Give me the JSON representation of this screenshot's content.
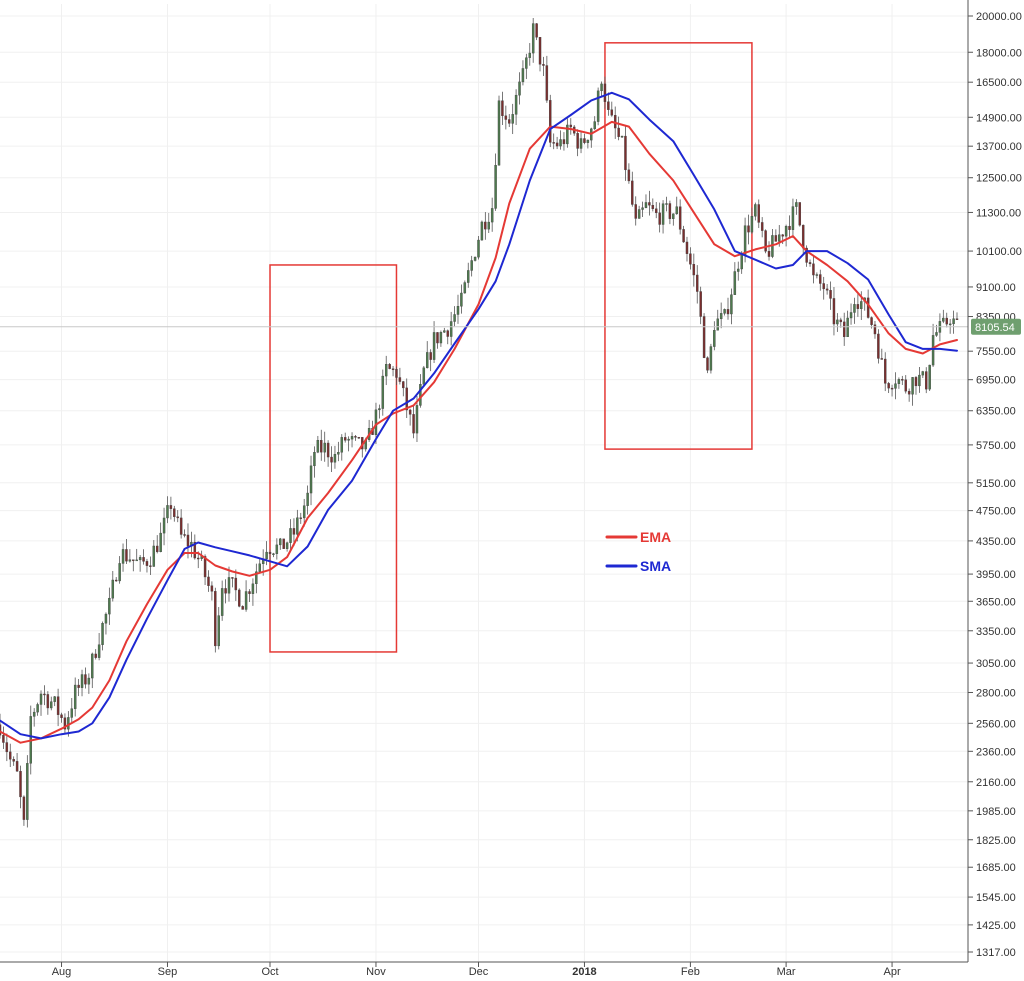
{
  "chart_data": {
    "type": "line",
    "title": "",
    "xlabel": "",
    "ylabel": "",
    "y_scale": "log",
    "ylim": [
      1317,
      20000
    ],
    "x_range": [
      "2017-07-14",
      "2018-04-20"
    ],
    "grid": true,
    "legend_placement": "center-right",
    "y_ticks": [
      20000,
      18000,
      16500,
      14900,
      13700,
      12500,
      11300,
      10100,
      9100,
      8350,
      7550,
      6950,
      6350,
      5750,
      5150,
      4750,
      4350,
      3950,
      3650,
      3350,
      3050,
      2800,
      2560,
      2360,
      2160,
      1985,
      1825,
      1685,
      1545,
      1425,
      1317
    ],
    "y_tick_labels": [
      "20000.00",
      "18000.00",
      "16500.00",
      "14900.00",
      "13700.00",
      "12500.00",
      "11300.00",
      "10100.00",
      "9100.00",
      "8350.00",
      "7550.00",
      "6950.00",
      "6350.00",
      "5750.00",
      "5150.00",
      "4750.00",
      "4350.00",
      "3950.00",
      "3650.00",
      "3350.00",
      "3050.00",
      "2800.00",
      "2560.00",
      "2360.00",
      "2160.00",
      "1985.00",
      "1825.00",
      "1685.00",
      "1545.00",
      "1425.00",
      "1317.00"
    ],
    "x_ticks": [
      {
        "date": "2017-08-01",
        "label": "Aug"
      },
      {
        "date": "2017-09-01",
        "label": "Sep"
      },
      {
        "date": "2017-10-01",
        "label": "Oct"
      },
      {
        "date": "2017-11-01",
        "label": "Nov"
      },
      {
        "date": "2017-12-01",
        "label": "Dec"
      },
      {
        "date": "2018-01-01",
        "label": "2018"
      },
      {
        "date": "2018-02-01",
        "label": "Feb"
      },
      {
        "date": "2018-03-01",
        "label": "Mar"
      },
      {
        "date": "2018-04-01",
        "label": "Apr"
      }
    ],
    "last_price": {
      "value": 8105.54,
      "label": "8105.54"
    },
    "series": [
      {
        "name": "EMA",
        "color": "#e53935",
        "points": [
          [
            "2017-07-14",
            2500
          ],
          [
            "2017-07-20",
            2420
          ],
          [
            "2017-07-26",
            2450
          ],
          [
            "2017-08-01",
            2520
          ],
          [
            "2017-08-06",
            2590
          ],
          [
            "2017-08-10",
            2680
          ],
          [
            "2017-08-15",
            2900
          ],
          [
            "2017-08-20",
            3250
          ],
          [
            "2017-08-26",
            3620
          ],
          [
            "2017-09-01",
            4000
          ],
          [
            "2017-09-06",
            4200
          ],
          [
            "2017-09-10",
            4200
          ],
          [
            "2017-09-15",
            4050
          ],
          [
            "2017-09-20",
            3980
          ],
          [
            "2017-09-25",
            3930
          ],
          [
            "2017-10-01",
            4000
          ],
          [
            "2017-10-06",
            4150
          ],
          [
            "2017-10-12",
            4650
          ],
          [
            "2017-10-18",
            5000
          ],
          [
            "2017-10-25",
            5500
          ],
          [
            "2017-11-01",
            6100
          ],
          [
            "2017-11-06",
            6300
          ],
          [
            "2017-11-12",
            6450
          ],
          [
            "2017-11-18",
            6900
          ],
          [
            "2017-11-24",
            7600
          ],
          [
            "2017-12-01",
            8650
          ],
          [
            "2017-12-06",
            9900
          ],
          [
            "2017-12-10",
            11600
          ],
          [
            "2017-12-16",
            13600
          ],
          [
            "2017-12-22",
            14500
          ],
          [
            "2017-12-28",
            14400
          ],
          [
            "2018-01-03",
            14200
          ],
          [
            "2018-01-09",
            14700
          ],
          [
            "2018-01-14",
            14500
          ],
          [
            "2018-01-20",
            13400
          ],
          [
            "2018-01-27",
            12400
          ],
          [
            "2018-02-02",
            11300
          ],
          [
            "2018-02-08",
            10300
          ],
          [
            "2018-02-14",
            9950
          ],
          [
            "2018-02-20",
            10150
          ],
          [
            "2018-02-26",
            10300
          ],
          [
            "2018-03-03",
            10550
          ],
          [
            "2018-03-07",
            10100
          ],
          [
            "2018-03-13",
            9700
          ],
          [
            "2018-03-19",
            9250
          ],
          [
            "2018-03-25",
            8650
          ],
          [
            "2018-03-31",
            7950
          ],
          [
            "2018-04-05",
            7600
          ],
          [
            "2018-04-10",
            7500
          ],
          [
            "2018-04-15",
            7700
          ],
          [
            "2018-04-20",
            7800
          ]
        ]
      },
      {
        "name": "SMA",
        "color": "#1e28d2",
        "points": [
          [
            "2017-07-14",
            2580
          ],
          [
            "2017-07-20",
            2480
          ],
          [
            "2017-07-26",
            2450
          ],
          [
            "2017-08-01",
            2480
          ],
          [
            "2017-08-06",
            2500
          ],
          [
            "2017-08-10",
            2560
          ],
          [
            "2017-08-15",
            2760
          ],
          [
            "2017-08-20",
            3080
          ],
          [
            "2017-08-26",
            3470
          ],
          [
            "2017-09-01",
            3880
          ],
          [
            "2017-09-06",
            4250
          ],
          [
            "2017-09-10",
            4330
          ],
          [
            "2017-09-15",
            4270
          ],
          [
            "2017-09-20",
            4220
          ],
          [
            "2017-09-25",
            4170
          ],
          [
            "2017-10-01",
            4100
          ],
          [
            "2017-10-06",
            4040
          ],
          [
            "2017-10-12",
            4280
          ],
          [
            "2017-10-18",
            4760
          ],
          [
            "2017-10-25",
            5180
          ],
          [
            "2017-11-01",
            5850
          ],
          [
            "2017-11-06",
            6350
          ],
          [
            "2017-11-12",
            6580
          ],
          [
            "2017-11-18",
            7080
          ],
          [
            "2017-11-24",
            7720
          ],
          [
            "2017-12-01",
            8530
          ],
          [
            "2017-12-06",
            9250
          ],
          [
            "2017-12-10",
            10300
          ],
          [
            "2017-12-16",
            12400
          ],
          [
            "2017-12-22",
            14400
          ],
          [
            "2017-12-28",
            15000
          ],
          [
            "2018-01-03",
            15650
          ],
          [
            "2018-01-09",
            16000
          ],
          [
            "2018-01-14",
            15700
          ],
          [
            "2018-01-20",
            14800
          ],
          [
            "2018-01-27",
            13900
          ],
          [
            "2018-02-02",
            12600
          ],
          [
            "2018-02-08",
            11400
          ],
          [
            "2018-02-14",
            10100
          ],
          [
            "2018-02-20",
            9850
          ],
          [
            "2018-02-26",
            9600
          ],
          [
            "2018-03-03",
            9700
          ],
          [
            "2018-03-07",
            10100
          ],
          [
            "2018-03-13",
            10100
          ],
          [
            "2018-03-19",
            9750
          ],
          [
            "2018-03-25",
            9300
          ],
          [
            "2018-03-31",
            8400
          ],
          [
            "2018-04-05",
            7750
          ],
          [
            "2018-04-10",
            7600
          ],
          [
            "2018-04-15",
            7600
          ],
          [
            "2018-04-20",
            7560
          ]
        ]
      }
    ],
    "price_path": [
      [
        "2017-07-14",
        2550
      ],
      [
        "2017-07-17",
        2300
      ],
      [
        "2017-07-19",
        2200
      ],
      [
        "2017-07-21",
        1900
      ],
      [
        "2017-07-23",
        2600
      ],
      [
        "2017-07-26",
        2800
      ],
      [
        "2017-07-30",
        2700
      ],
      [
        "2017-08-02",
        2550
      ],
      [
        "2017-08-05",
        2800
      ],
      [
        "2017-08-09",
        2950
      ],
      [
        "2017-08-12",
        3300
      ],
      [
        "2017-08-15",
        3600
      ],
      [
        "2017-08-18",
        4200
      ],
      [
        "2017-08-21",
        4150
      ],
      [
        "2017-08-24",
        4050
      ],
      [
        "2017-08-27",
        4150
      ],
      [
        "2017-08-30",
        4400
      ],
      [
        "2017-09-02",
        4850
      ],
      [
        "2017-09-05",
        4400
      ],
      [
        "2017-09-08",
        4300
      ],
      [
        "2017-09-11",
        4050
      ],
      [
        "2017-09-14",
        3700
      ],
      [
        "2017-09-15",
        3300
      ],
      [
        "2017-09-17",
        3850
      ],
      [
        "2017-09-20",
        3800
      ],
      [
        "2017-09-23",
        3650
      ],
      [
        "2017-09-26",
        3900
      ],
      [
        "2017-09-30",
        4300
      ],
      [
        "2017-10-04",
        4250
      ],
      [
        "2017-10-08",
        4450
      ],
      [
        "2017-10-12",
        4950
      ],
      [
        "2017-10-14",
        5650
      ],
      [
        "2017-10-17",
        5700
      ],
      [
        "2017-10-20",
        5550
      ],
      [
        "2017-10-23",
        5850
      ],
      [
        "2017-10-26",
        5750
      ],
      [
        "2017-10-29",
        5700
      ],
      [
        "2017-11-01",
        6250
      ],
      [
        "2017-11-04",
        7150
      ],
      [
        "2017-11-07",
        7100
      ],
      [
        "2017-11-10",
        6400
      ],
      [
        "2017-11-12",
        5950
      ],
      [
        "2017-11-15",
        7100
      ],
      [
        "2017-11-18",
        7800
      ],
      [
        "2017-11-22",
        8100
      ],
      [
        "2017-11-26",
        8700
      ],
      [
        "2017-11-29",
        9800
      ],
      [
        "2017-12-02",
        10900
      ],
      [
        "2017-12-05",
        11500
      ],
      [
        "2017-12-07",
        15500
      ],
      [
        "2017-12-10",
        14800
      ],
      [
        "2017-12-14",
        16700
      ],
      [
        "2017-12-17",
        19200
      ],
      [
        "2017-12-20",
        17000
      ],
      [
        "2017-12-22",
        13800
      ],
      [
        "2017-12-25",
        13800
      ],
      [
        "2017-12-28",
        14400
      ],
      [
        "2017-12-31",
        13700
      ],
      [
        "2018-01-04",
        14800
      ],
      [
        "2018-01-06",
        16800
      ],
      [
        "2018-01-08",
        15000
      ],
      [
        "2018-01-12",
        13700
      ],
      [
        "2018-01-16",
        10900
      ],
      [
        "2018-01-19",
        11500
      ],
      [
        "2018-01-22",
        11200
      ],
      [
        "2018-01-25",
        11300
      ],
      [
        "2018-01-28",
        11300
      ],
      [
        "2018-01-31",
        10100
      ],
      [
        "2018-02-03",
        9000
      ],
      [
        "2018-02-06",
        7000
      ],
      [
        "2018-02-08",
        8200
      ],
      [
        "2018-02-11",
        8300
      ],
      [
        "2018-02-14",
        9400
      ],
      [
        "2018-02-17",
        10700
      ],
      [
        "2018-02-20",
        11300
      ],
      [
        "2018-02-23",
        10000
      ],
      [
        "2018-02-26",
        10400
      ],
      [
        "2018-03-01",
        10900
      ],
      [
        "2018-03-04",
        11400
      ],
      [
        "2018-03-07",
        10000
      ],
      [
        "2018-03-09",
        9300
      ],
      [
        "2018-03-12",
        9100
      ],
      [
        "2018-03-15",
        8300
      ],
      [
        "2018-03-18",
        7900
      ],
      [
        "2018-03-21",
        8900
      ],
      [
        "2018-03-24",
        8600
      ],
      [
        "2018-03-27",
        8000
      ],
      [
        "2018-03-30",
        6900
      ],
      [
        "2018-04-02",
        7000
      ],
      [
        "2018-04-05",
        6800
      ],
      [
        "2018-04-08",
        7000
      ],
      [
        "2018-04-11",
        6900
      ],
      [
        "2018-04-13",
        7900
      ],
      [
        "2018-04-16",
        8100
      ],
      [
        "2018-04-18",
        8350
      ],
      [
        "2018-04-20",
        8105
      ]
    ],
    "highlight_boxes": [
      {
        "from": "2017-10-01",
        "to": "2017-11-07",
        "high": 9700,
        "low": 3150
      },
      {
        "from": "2018-01-07",
        "to": "2018-02-19",
        "high": 18500,
        "low": 5680
      }
    ]
  },
  "legend": {
    "items": [
      {
        "label": "EMA",
        "color": "#e53935"
      },
      {
        "label": "SMA",
        "color": "#1e28d2"
      }
    ]
  },
  "colors": {
    "up_candle": "#4e7a4e",
    "down_candle": "#7a2e2e",
    "highlight_box": "#e53935",
    "price_badge": "#6f9f6f",
    "grid": "#f0f0f0"
  }
}
